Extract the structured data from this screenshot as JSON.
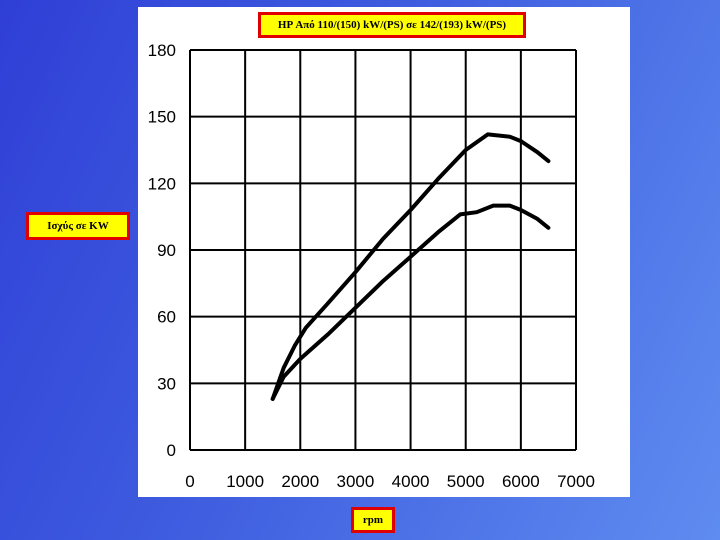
{
  "colors": {
    "background": "#3f5ee0",
    "label_fill": "#ffff00",
    "label_border": "#e00000",
    "line": "#000000"
  },
  "chart_data": {
    "type": "line",
    "title": "HP Από 110/(150) kW/(PS) σε 142/(193) kW/(PS)",
    "xlabel": "rpm",
    "ylabel": "Ισχύς σε KW",
    "xlim": [
      0,
      7000
    ],
    "ylim": [
      0,
      180
    ],
    "xticks": [
      0,
      1000,
      2000,
      3000,
      4000,
      5000,
      6000,
      7000
    ],
    "yticks": [
      0,
      30,
      60,
      90,
      120,
      150,
      180
    ],
    "grid": true,
    "series": [
      {
        "values": [
          [
            1500,
            23
          ],
          [
            1700,
            37
          ],
          [
            1900,
            47
          ],
          [
            2100,
            55
          ],
          [
            2500,
            66
          ],
          [
            3000,
            80
          ],
          [
            3500,
            95
          ],
          [
            4000,
            108
          ],
          [
            4500,
            122
          ],
          [
            5000,
            135
          ],
          [
            5400,
            142
          ],
          [
            5800,
            141
          ],
          [
            6000,
            139
          ],
          [
            6300,
            134
          ],
          [
            6500,
            130
          ]
        ]
      },
      {
        "values": [
          [
            1500,
            23
          ],
          [
            1700,
            33
          ],
          [
            2000,
            41
          ],
          [
            2500,
            52
          ],
          [
            3000,
            64
          ],
          [
            3500,
            76
          ],
          [
            4000,
            87
          ],
          [
            4500,
            98
          ],
          [
            4900,
            106
          ],
          [
            5200,
            107
          ],
          [
            5500,
            110
          ],
          [
            5800,
            110
          ],
          [
            6000,
            108
          ],
          [
            6300,
            104
          ],
          [
            6500,
            100
          ]
        ]
      }
    ]
  }
}
